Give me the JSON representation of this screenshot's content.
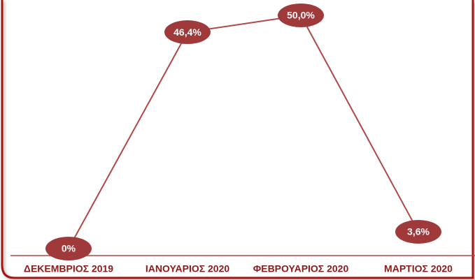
{
  "chart_data": {
    "type": "line",
    "categories": [
      "ΔΕΚΕΜΒΡΙΟΣ 2019",
      "ΙΑΝΟΥΑΡΙΟΣ 2020",
      "ΦΕΒΡΟΥΑΡΙΟΣ 2020",
      "ΜΑΡΤΙΟΣ 2020"
    ],
    "values": [
      0,
      46.4,
      50.0,
      3.6
    ],
    "value_labels": [
      "0%",
      "46,4%",
      "50,0%",
      "3,6%"
    ],
    "color": "#b04848",
    "ylim": [
      0,
      50
    ]
  }
}
